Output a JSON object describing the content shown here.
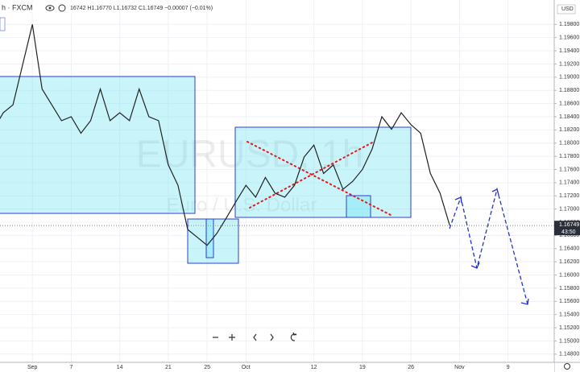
{
  "chart_data": {
    "type": "line",
    "header": "h · FXCM",
    "ohlc": "16742 H1.16770 L1.16732 C1.16749 −0.00007 (−0.01%)",
    "watermark": "EURUSD, 1h",
    "watermark_subtitle": "Euro / U.S. Dollar",
    "currency": "USD",
    "categories": [
      null,
      null,
      null,
      null,
      "Sep",
      null,
      null,
      null,
      "7",
      null,
      null,
      null,
      null,
      "14",
      null,
      null,
      null,
      null,
      "21",
      null,
      null,
      null,
      "25",
      null,
      null,
      null,
      "Oct",
      null,
      null,
      null,
      null,
      null,
      null,
      "12",
      null,
      null,
      null,
      null,
      "19",
      null,
      null,
      null,
      null,
      "26",
      null,
      null,
      null,
      null,
      "Nov",
      null,
      null,
      null,
      null,
      "9",
      null,
      null,
      null,
      null
    ],
    "values": [
      1.1821,
      1.1846,
      1.1858,
      1.1919,
      1.198,
      1.1882,
      1.1858,
      1.1834,
      1.184,
      1.1815,
      1.1834,
      1.1882,
      1.1834,
      1.1846,
      1.1834,
      1.1882,
      1.184,
      1.1834,
      1.1767,
      1.1736,
      1.1669,
      1.1657,
      1.1645,
      1.1663,
      1.1687,
      1.1712,
      1.1736,
      1.1718,
      1.1748,
      1.1724,
      1.1718,
      1.1736,
      1.1779,
      1.1797,
      1.1754,
      1.1767,
      1.173,
      1.1742,
      1.176,
      1.1791,
      1.184,
      1.1821,
      1.1846,
      1.1828,
      1.1815,
      1.1754,
      1.1724,
      1.16749,
      null,
      null,
      null,
      null,
      null,
      null,
      null,
      null,
      null,
      null
    ],
    "color": "#222222",
    "last_price": {
      "value": 1.16749,
      "label": "1.16749"
    },
    "countdown": "43:50",
    "ylim": [
      1.147,
      1.2017
    ],
    "yticks": [
      {
        "value": 1.148,
        "label": "1.14800"
      },
      {
        "value": 1.15,
        "label": "1.15000"
      },
      {
        "value": 1.152,
        "label": "1.15200"
      },
      {
        "value": 1.154,
        "label": "1.15400"
      },
      {
        "value": 1.156,
        "label": "1.15600"
      },
      {
        "value": 1.158,
        "label": "1.15800"
      },
      {
        "value": 1.16,
        "label": "1.16000"
      },
      {
        "value": 1.162,
        "label": "1.16200"
      },
      {
        "value": 1.164,
        "label": "1.16400"
      },
      {
        "value": 1.166,
        "label": "1.16600"
      },
      {
        "value": 1.168,
        "label": "1.16800"
      },
      {
        "value": 1.17,
        "label": "1.17000"
      },
      {
        "value": 1.172,
        "label": "1.17200"
      },
      {
        "value": 1.174,
        "label": "1.17400"
      },
      {
        "value": 1.176,
        "label": "1.17600"
      },
      {
        "value": 1.178,
        "label": "1.17800"
      },
      {
        "value": 1.18,
        "label": "1.18000"
      },
      {
        "value": 1.182,
        "label": "1.18200"
      },
      {
        "value": 1.184,
        "label": "1.18400"
      },
      {
        "value": 1.186,
        "label": "1.18600"
      },
      {
        "value": 1.188,
        "label": "1.18800"
      },
      {
        "value": 1.19,
        "label": "1.19000"
      },
      {
        "value": 1.192,
        "label": "1.19200"
      },
      {
        "value": 1.194,
        "label": "1.19400"
      },
      {
        "value": 1.196,
        "label": "1.19600"
      },
      {
        "value": 1.198,
        "label": "1.19800"
      }
    ],
    "grid": true
  }
}
